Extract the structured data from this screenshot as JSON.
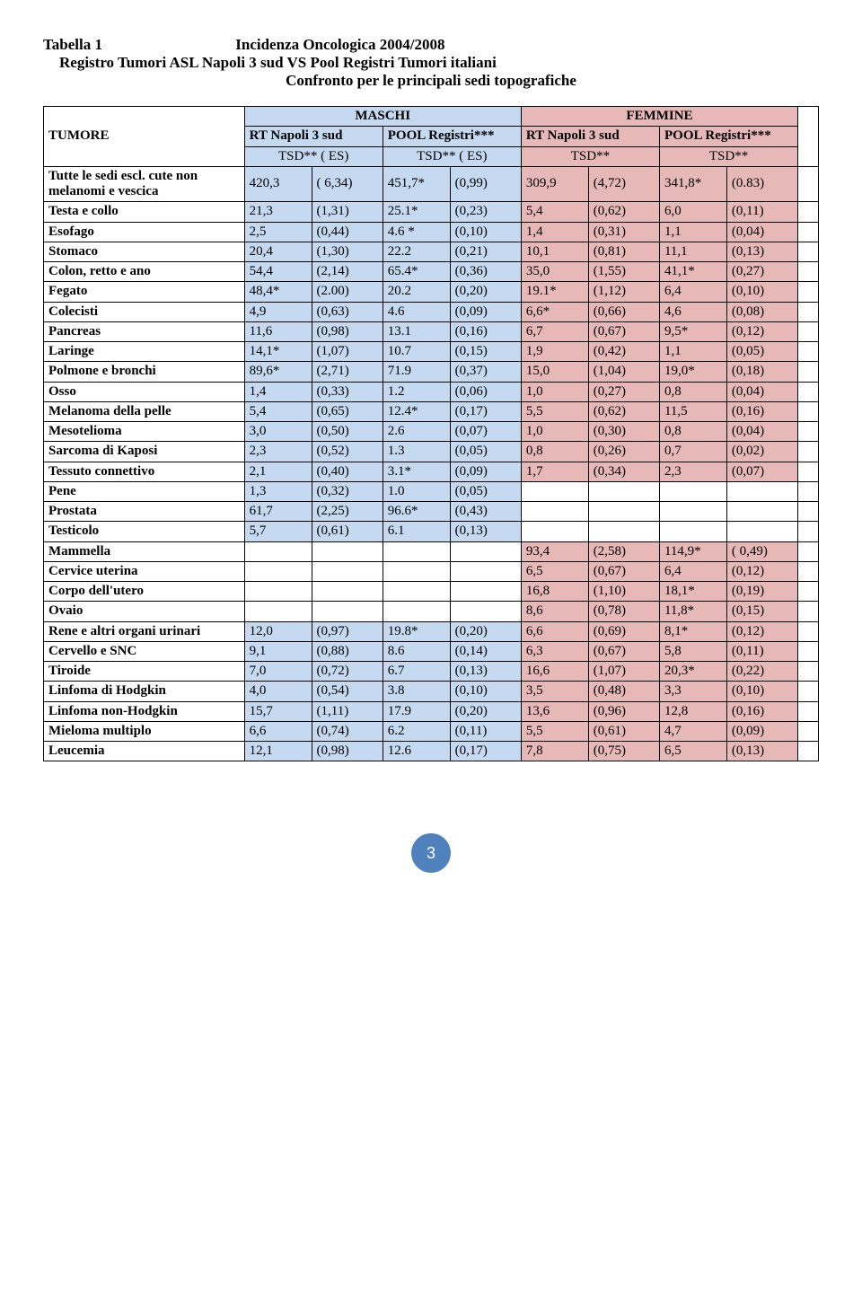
{
  "title": {
    "table_label": "Tabella 1",
    "main": "Incidenza Oncologica 2004/2008",
    "sub1": "Registro Tumori ASL Napoli 3 sud  VS   Pool Registri Tumori italiani",
    "sub2": "Confronto per le principali sedi topografiche"
  },
  "headers": {
    "maschi": "MASCHI",
    "femmine": "FEMMINE",
    "tumore": "TUMORE",
    "col_m1": "RT Napoli 3 sud",
    "col_m2": "POOL Registri***",
    "col_f1": "RT Napoli 3 sud",
    "col_f2": "POOL Registri***",
    "tsd_es": "TSD**   ( ES)",
    "tsd": "TSD**"
  },
  "colors": {
    "maschi_bg": "#c5d9f1",
    "femmine_bg": "#e6b8b7",
    "page_circle": "#4f81bd"
  },
  "rows": [
    {
      "label": "Tutte le sedi escl. cute non melanomi  e vescica",
      "m1_v": "420,3",
      "m1_e": "( 6,34)",
      "m2_v": "451,7*",
      "m2_e": "(0,99)",
      "f1_v": "309,9",
      "f1_e": "(4,72)",
      "f2_v": "341,8*",
      "f2_e": "(0.83)",
      "multi": true
    },
    {
      "label": "Testa e collo",
      "m1_v": "21,3",
      "m1_e": "(1,31)",
      "m2_v": "25.1*",
      "m2_e": "(0,23)",
      "f1_v": "5,4",
      "f1_e": "(0,62)",
      "f2_v": "6,0",
      "f2_e": "(0,11)"
    },
    {
      "label": "Esofago",
      "m1_v": "2,5",
      "m1_e": "(0,44)",
      "m2_v": "4.6 *",
      "m2_e": "(0,10)",
      "f1_v": "1,4",
      "f1_e": "(0,31)",
      "f2_v": "1,1",
      "f2_e": "(0,04)"
    },
    {
      "label": "Stomaco",
      "m1_v": "20,4",
      "m1_e": "(1,30)",
      "m2_v": "22.2",
      "m2_e": "(0,21)",
      "f1_v": "10,1",
      "f1_e": "(0,81)",
      "f2_v": "11,1",
      "f2_e": "(0,13)"
    },
    {
      "label": "Colon, retto e ano",
      "m1_v": "54,4",
      "m1_e": "(2,14)",
      "m2_v": "65.4*",
      "m2_e": "(0,36)",
      "f1_v": "35,0",
      "f1_e": "(1,55)",
      "f2_v": "41,1*",
      "f2_e": "(0,27)"
    },
    {
      "label": "Fegato",
      "m1_v": "48,4*",
      "m1_e": "(2.00)",
      "m2_v": "20.2",
      "m2_e": "(0,20)",
      "f1_v": "19.1*",
      "f1_e": "(1,12)",
      "f2_v": "6,4",
      "f2_e": "(0,10)"
    },
    {
      "label": "Colecisti",
      "m1_v": "4,9",
      "m1_e": "(0,63)",
      "m2_v": "4.6",
      "m2_e": "(0,09)",
      "f1_v": "6,6*",
      "f1_e": "(0,66)",
      "f2_v": "4,6",
      "f2_e": "(0,08)"
    },
    {
      "label": "Pancreas",
      "m1_v": "11,6",
      "m1_e": "(0,98)",
      "m2_v": "13.1",
      "m2_e": "(0,16)",
      "f1_v": "6,7",
      "f1_e": "(0,67)",
      "f2_v": "9,5*",
      "f2_e": "(0,12)"
    },
    {
      "label": "Laringe",
      "m1_v": "14,1*",
      "m1_e": "(1,07)",
      "m2_v": "10.7",
      "m2_e": "(0,15)",
      "f1_v": "1,9",
      "f1_e": "(0,42)",
      "f2_v": "1,1",
      "f2_e": "(0,05)"
    },
    {
      "label": "Polmone e bronchi",
      "m1_v": "89,6*",
      "m1_e": "(2,71)",
      "m2_v": "71.9",
      "m2_e": "(0,37)",
      "f1_v": "15,0",
      "f1_e": "(1,04)",
      "f2_v": "19,0*",
      "f2_e": "(0,18)"
    },
    {
      "label": "Osso",
      "m1_v": "1,4",
      "m1_e": "(0,33)",
      "m2_v": "1.2",
      "m2_e": "(0,06)",
      "f1_v": "1,0",
      "f1_e": "(0,27)",
      "f2_v": "0,8",
      "f2_e": "(0,04)"
    },
    {
      "label": "Melanoma della pelle",
      "m1_v": "5,4",
      "m1_e": "(0,65)",
      "m2_v": "12.4*",
      "m2_e": "(0,17)",
      "f1_v": "5,5",
      "f1_e": "(0,62)",
      "f2_v": "11,5",
      "f2_e": "(0,16)"
    },
    {
      "label": "Mesotelioma",
      "m1_v": "3,0",
      "m1_e": "(0,50)",
      "m2_v": "2.6",
      "m2_e": "(0,07)",
      "f1_v": "1,0",
      "f1_e": "(0,30)",
      "f2_v": "0,8",
      "f2_e": "(0,04)"
    },
    {
      "label": "Sarcoma di Kaposi",
      "m1_v": "2,3",
      "m1_e": "(0,52)",
      "m2_v": "1.3",
      "m2_e": "(0,05)",
      "f1_v": "0,8",
      "f1_e": "(0,26)",
      "f2_v": "0,7",
      "f2_e": "(0,02)"
    },
    {
      "label": "Tessuto connettivo",
      "m1_v": "2,1",
      "m1_e": "(0,40)",
      "m2_v": "3.1*",
      "m2_e": "(0,09)",
      "f1_v": "1,7",
      "f1_e": "(0,34)",
      "f2_v": "2,3",
      "f2_e": "(0,07)"
    },
    {
      "label": "Pene",
      "m1_v": "1,3",
      "m1_e": "(0,32)",
      "m2_v": "1.0",
      "m2_e": "(0,05)",
      "f1_v": "",
      "f1_e": "",
      "f2_v": "",
      "f2_e": "",
      "f_empty": true
    },
    {
      "label": "Prostata",
      "m1_v": "61,7",
      "m1_e": "(2,25)",
      "m2_v": "96.6*",
      "m2_e": "(0,43)",
      "f1_v": "",
      "f1_e": "",
      "f2_v": "",
      "f2_e": "",
      "f_empty": true
    },
    {
      "label": "Testicolo",
      "m1_v": "5,7",
      "m1_e": "(0,61)",
      "m2_v": "6.1",
      "m2_e": "(0,13)",
      "f1_v": "",
      "f1_e": "",
      "f2_v": "",
      "f2_e": "",
      "f_empty": true
    },
    {
      "label": "Mammella",
      "m1_v": "",
      "m1_e": "",
      "m2_v": "",
      "m2_e": "",
      "f1_v": "93,4",
      "f1_e": "(2,58)",
      "f2_v": "114,9*",
      "f2_e": "( 0,49)",
      "m_empty": true
    },
    {
      "label": "Cervice uterina",
      "m1_v": "",
      "m1_e": "",
      "m2_v": "",
      "m2_e": "",
      "f1_v": "6,5",
      "f1_e": "(0,67)",
      "f2_v": "6,4",
      "f2_e": "(0,12)",
      "m_empty": true
    },
    {
      "label": "Corpo  dell'utero",
      "m1_v": "",
      "m1_e": "",
      "m2_v": "",
      "m2_e": "",
      "f1_v": "16,8",
      "f1_e": "(1,10)",
      "f2_v": "18,1*",
      "f2_e": "(0,19)",
      "m_empty": true
    },
    {
      "label": "Ovaio",
      "m1_v": "",
      "m1_e": "",
      "m2_v": "",
      "m2_e": "",
      "f1_v": "8,6",
      "f1_e": "(0,78)",
      "f2_v": "11,8*",
      "f2_e": "(0,15)",
      "m_empty": true
    },
    {
      "label": "Rene e altri organi urinari",
      "m1_v": "12,0",
      "m1_e": "(0,97)",
      "m2_v": "19.8*",
      "m2_e": "(0,20)",
      "f1_v": "6,6",
      "f1_e": "(0,69)",
      "f2_v": "8,1*",
      "f2_e": "(0,12)",
      "multi": true
    },
    {
      "label": "Cervello e SNC",
      "m1_v": "9,1",
      "m1_e": "(0,88)",
      "m2_v": "8.6",
      "m2_e": "(0,14)",
      "f1_v": "6,3",
      "f1_e": "(0,67)",
      "f2_v": "5,8",
      "f2_e": "(0,11)"
    },
    {
      "label": "Tiroide",
      "m1_v": "7,0",
      "m1_e": "(0,72)",
      "m2_v": "6.7",
      "m2_e": "(0,13)",
      "f1_v": "16,6",
      "f1_e": "(1,07)",
      "f2_v": "20,3*",
      "f2_e": "(0,22)"
    },
    {
      "label": "Linfoma di Hodgkin",
      "m1_v": "4,0",
      "m1_e": "(0,54)",
      "m2_v": "3.8",
      "m2_e": "(0,10)",
      "f1_v": "3,5",
      "f1_e": "(0,48)",
      "f2_v": "3,3",
      "f2_e": "(0,10)"
    },
    {
      "label": "Linfoma non-Hodgkin",
      "m1_v": "15,7",
      "m1_e": "(1,11)",
      "m2_v": "17.9",
      "m2_e": "(0,20)",
      "f1_v": "13,6",
      "f1_e": "(0,96)",
      "f2_v": "12,8",
      "f2_e": "(0,16)"
    },
    {
      "label": "Mieloma multiplo",
      "m1_v": "6,6",
      "m1_e": "(0,74)",
      "m2_v": "6.2",
      "m2_e": "(0,11)",
      "f1_v": "5,5",
      "f1_e": "(0,61)",
      "f2_v": "4,7",
      "f2_e": "(0,09)"
    },
    {
      "label": "Leucemia",
      "m1_v": "12,1",
      "m1_e": "(0,98)",
      "m2_v": "12.6",
      "m2_e": "(0,17)",
      "f1_v": "7,8",
      "f1_e": "(0,75)",
      "f2_v": "6,5",
      "f2_e": "(0,13)"
    }
  ],
  "page_number": "3"
}
